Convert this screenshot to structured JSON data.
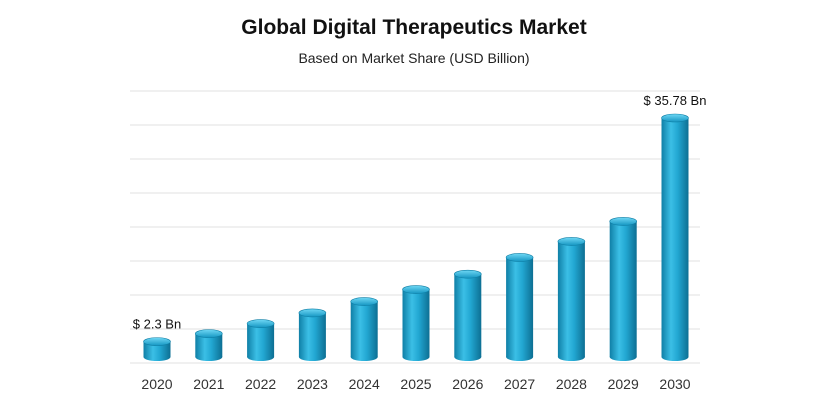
{
  "chart_data": {
    "type": "bar",
    "title": "Global Digital Therapeutics Market",
    "subtitle": "Based on Market Share (USD Billion)",
    "categories": [
      "2020",
      "2021",
      "2022",
      "2023",
      "2024",
      "2025",
      "2026",
      "2027",
      "2028",
      "2029",
      "2030"
    ],
    "values": [
      2.3,
      3.5,
      5.0,
      6.6,
      8.3,
      10.1,
      12.4,
      14.9,
      17.3,
      20.3,
      35.78
    ],
    "data_labels": [
      {
        "index": 0,
        "text": "$ 2.3 Bn"
      },
      {
        "index": 10,
        "text": "$ 35.78 Bn"
      }
    ],
    "grid": true,
    "legend": "none",
    "bar_color": "#1b9fca"
  }
}
